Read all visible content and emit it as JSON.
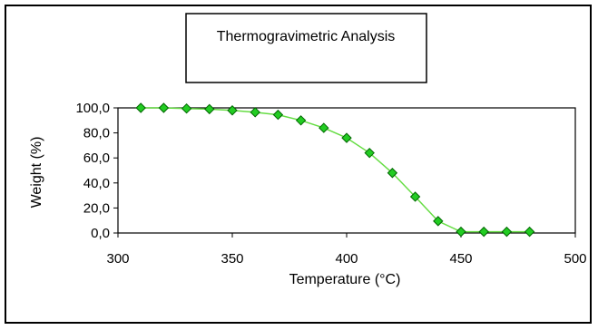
{
  "chart_data": {
    "type": "line",
    "title": "Thermogravimetric Analysis",
    "xlabel": "Temperature (°C)",
    "ylabel": "Weight (%)",
    "xlim": [
      300,
      500
    ],
    "ylim": [
      0,
      100
    ],
    "x_ticks": [
      "300",
      "350",
      "400",
      "450",
      "500"
    ],
    "y_ticks": [
      "0,0",
      "20,0",
      "40,0",
      "60,0",
      "80,0",
      "100,0"
    ],
    "grid": false,
    "legend": "none",
    "marker": "diamond",
    "colors": {
      "line": "#66dd44",
      "marker_fill": "#22cc22",
      "marker_edge": "#006600"
    },
    "series": [
      {
        "x": [
          310,
          320,
          330,
          340,
          350,
          360,
          370,
          380,
          390,
          400,
          410,
          420,
          430,
          440,
          450,
          460,
          470,
          480
        ],
        "values": [
          100,
          100,
          99.5,
          99,
          98,
          96.5,
          94.5,
          90,
          84,
          76,
          64,
          48,
          29,
          9.5,
          1,
          1,
          1,
          1
        ]
      }
    ]
  }
}
